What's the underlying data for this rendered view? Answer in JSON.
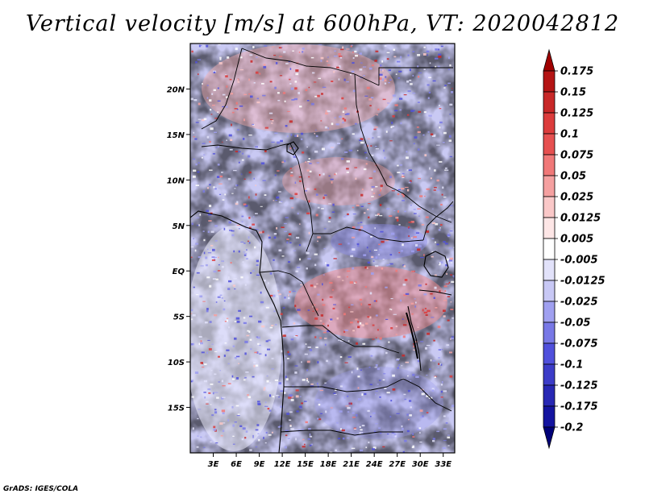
{
  "title": "Vertical velocity [m/s] at 600hPa, VT: 2020042812",
  "credit": "GrADS: IGES/COLA",
  "map": {
    "lon_range": [
      0,
      34.5
    ],
    "lat_range": [
      -20,
      25
    ],
    "lat_ticks": [
      {
        "value": 20,
        "label": "20N"
      },
      {
        "value": 15,
        "label": "15N"
      },
      {
        "value": 10,
        "label": "10N"
      },
      {
        "value": 5,
        "label": "5N"
      },
      {
        "value": 0,
        "label": "EQ"
      },
      {
        "value": -5,
        "label": "5S"
      },
      {
        "value": -10,
        "label": "10S"
      },
      {
        "value": -15,
        "label": "15S"
      }
    ],
    "lon_ticks": [
      {
        "value": 3,
        "label": "3E"
      },
      {
        "value": 6,
        "label": "6E"
      },
      {
        "value": 9,
        "label": "9E"
      },
      {
        "value": 12,
        "label": "12E"
      },
      {
        "value": 15,
        "label": "15E"
      },
      {
        "value": 18,
        "label": "18E"
      },
      {
        "value": 21,
        "label": "21E"
      },
      {
        "value": 24,
        "label": "24E"
      },
      {
        "value": 27,
        "label": "27E"
      },
      {
        "value": 30,
        "label": "30E"
      },
      {
        "value": 33,
        "label": "33E"
      }
    ]
  },
  "colorbar": {
    "levels": [
      "0.175",
      "0.15",
      "0.125",
      "0.1",
      "0.075",
      "0.05",
      "0.025",
      "0.0125",
      "0.005",
      "-0.005",
      "-0.0125",
      "-0.025",
      "-0.05",
      "-0.075",
      "-0.1",
      "-0.125",
      "-0.175",
      "-0.2"
    ],
    "colors": [
      "#a00000",
      "#b41414",
      "#c82828",
      "#dc3c3c",
      "#e65050",
      "#f07878",
      "#f5a0a0",
      "#fac8c8",
      "#fde6e6",
      "#ffffff",
      "#e2e2fa",
      "#c8c8f5",
      "#a0a0f0",
      "#7878e6",
      "#5050dc",
      "#3c3cc8",
      "#2828b4",
      "#1414a0",
      "#000078"
    ]
  }
}
